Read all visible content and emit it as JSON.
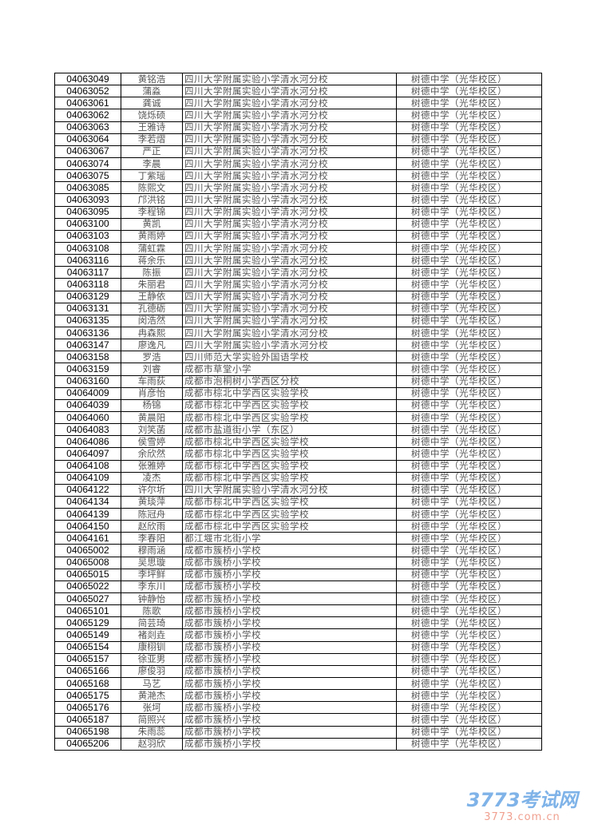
{
  "rows": [
    [
      "04063049",
      "黄铭浩",
      "四川大学附属实验小学清水河分校",
      "树德中学（光华校区）"
    ],
    [
      "04063052",
      "蒲淼",
      "四川大学附属实验小学清水河分校",
      "树德中学（光华校区）"
    ],
    [
      "04063061",
      "龚诚",
      "四川大学附属实验小学清水河分校",
      "树德中学（光华校区）"
    ],
    [
      "04063062",
      "饶烁硕",
      "四川大学附属实验小学清水河分校",
      "树德中学（光华校区）"
    ],
    [
      "04063063",
      "王雅诗",
      "四川大学附属实验小学清水河分校",
      "树德中学（光华校区）"
    ],
    [
      "04063064",
      "李若熠",
      "四川大学附属实验小学清水河分校",
      "树德中学（光华校区）"
    ],
    [
      "04063067",
      "严正",
      "四川大学附属实验小学清水河分校",
      "树德中学（光华校区）"
    ],
    [
      "04063074",
      "李晨",
      "四川大学附属实验小学清水河分校",
      "树德中学（光华校区）"
    ],
    [
      "04063075",
      "丁紫瑶",
      "四川大学附属实验小学清水河分校",
      "树德中学（光华校区）"
    ],
    [
      "04063085",
      "陈熙文",
      "四川大学附属实验小学清水河分校",
      "树德中学（光华校区）"
    ],
    [
      "04063093",
      "邝洪铭",
      "四川大学附属实验小学清水河分校",
      "树德中学（光华校区）"
    ],
    [
      "04063095",
      "李程锦",
      "四川大学附属实验小学清水河分校",
      "树德中学（光华校区）"
    ],
    [
      "04063100",
      "黄凯",
      "四川大学附属实验小学清水河分校",
      "树德中学（光华校区）"
    ],
    [
      "04063103",
      "黄雨婷",
      "四川大学附属实验小学清水河分校",
      "树德中学（光华校区）"
    ],
    [
      "04063108",
      "蒲虹霖",
      "四川大学附属实验小学清水河分校",
      "树德中学（光华校区）"
    ],
    [
      "04063116",
      "蒋余乐",
      "四川大学附属实验小学清水河分校",
      "树德中学（光华校区）"
    ],
    [
      "04063117",
      "陈振",
      "四川大学附属实验小学清水河分校",
      "树德中学（光华校区）"
    ],
    [
      "04063118",
      "朱丽君",
      "四川大学附属实验小学清水河分校",
      "树德中学（光华校区）"
    ],
    [
      "04063129",
      "王静依",
      "四川大学附属实验小学清水河分校",
      "树德中学（光华校区）"
    ],
    [
      "04063131",
      "孔德砺",
      "四川大学附属实验小学清水河分校",
      "树德中学（光华校区）"
    ],
    [
      "04063135",
      "闵浩然",
      "四川大学附属实验小学清水河分校",
      "树德中学（光华校区）"
    ],
    [
      "04063136",
      "冉森熙",
      "四川大学附属实验小学清水河分校",
      "树德中学（光华校区）"
    ],
    [
      "04063147",
      "廖逸凡",
      "四川大学附属实验小学清水河分校",
      "树德中学（光华校区）"
    ],
    [
      "04063158",
      "罗浩",
      "四川师范大学实验外国语学校",
      "树德中学（光华校区）"
    ],
    [
      "04063159",
      "刘睿",
      "成都市草堂小学",
      "树德中学（光华校区）"
    ],
    [
      "04063160",
      "车雨荻",
      "成都市泡桐树小学西区分校",
      "树德中学（光华校区）"
    ],
    [
      "04064009",
      "肖彦怡",
      "成都市棕北中学西区实验学校",
      "树德中学（光华校区）"
    ],
    [
      "04064039",
      "杨锦",
      "成都市棕北中学西区实验学校",
      "树德中学（光华校区）"
    ],
    [
      "04064060",
      "黄晨阳",
      "成都市棕北中学西区实验学校",
      "树德中学（光华校区）"
    ],
    [
      "04064083",
      "刘笑菡",
      "成都市盐道街小学（东区）",
      "树德中学（光华校区）"
    ],
    [
      "04064086",
      "侯雪婷",
      "成都市棕北中学西区实验学校",
      "树德中学（光华校区）"
    ],
    [
      "04064097",
      "余欣然",
      "成都市棕北中学西区实验学校",
      "树德中学（光华校区）"
    ],
    [
      "04064108",
      "张雅婷",
      "成都市棕北中学西区实验学校",
      "树德中学（光华校区）"
    ],
    [
      "04064109",
      "凌杰",
      "成都市棕北中学西区实验学校",
      "树德中学（光华校区）"
    ],
    [
      "04064122",
      "许尔圻",
      "四川大学附属实验小学清水河分校",
      "树德中学（光华校区）"
    ],
    [
      "04064134",
      "黄琰萍",
      "成都市棕北中学西区实验学校",
      "树德中学（光华校区）"
    ],
    [
      "04064139",
      "陈冠舟",
      "成都市棕北中学西区实验学校",
      "树德中学（光华校区）"
    ],
    [
      "04064150",
      "赵欣雨",
      "成都市棕北中学西区实验学校",
      "树德中学（光华校区）"
    ],
    [
      "04064161",
      "李春阳",
      "都江堰市北街小学",
      "树德中学（光华校区）"
    ],
    [
      "04065002",
      "穆雨涵",
      "成都市簇桥小学校",
      "树德中学（光华校区）"
    ],
    [
      "04065008",
      "吴思璇",
      "成都市簇桥小学校",
      "树德中学（光华校区）"
    ],
    [
      "04065015",
      "李坪鲜",
      "成都市簇桥小学校",
      "树德中学（光华校区）"
    ],
    [
      "04065022",
      "李东川",
      "成都市簇桥小学校",
      "树德中学（光华校区）"
    ],
    [
      "04065027",
      "钟静怡",
      "成都市簇桥小学校",
      "树德中学（光华校区）"
    ],
    [
      "04065101",
      "陈歌",
      "成都市簇桥小学校",
      "树德中学（光华校区）"
    ],
    [
      "04065129",
      "简芸琦",
      "成都市簇桥小学校",
      "树德中学（光华校区）"
    ],
    [
      "04065149",
      "褚剡垚",
      "成都市簇桥小学校",
      "树德中学（光华校区）"
    ],
    [
      "04065154",
      "康栩钏",
      "成都市簇桥小学校",
      "树德中学（光华校区）"
    ],
    [
      "04065157",
      "徐亚男",
      "成都市簇桥小学校",
      "树德中学（光华校区）"
    ],
    [
      "04065166",
      "廖俊羽",
      "成都市簇桥小学校",
      "树德中学（光华校区）"
    ],
    [
      "04065168",
      "马艺",
      "成都市簇桥小学校",
      "树德中学（光华校区）"
    ],
    [
      "04065175",
      "黄滟杰",
      "成都市簇桥小学校",
      "树德中学（光华校区）"
    ],
    [
      "04065176",
      "张坷",
      "成都市簇桥小学校",
      "树德中学（光华校区）"
    ],
    [
      "04065187",
      "简照兴",
      "成都市簇桥小学校",
      "树德中学（光华校区）"
    ],
    [
      "04065198",
      "朱雨蕊",
      "成都市簇桥小学校",
      "树德中学（光华校区）"
    ],
    [
      "04065206",
      "赵羽欣",
      "成都市簇桥小学校",
      "树德中学（光华校区）"
    ]
  ],
  "watermark": {
    "logo": "3773考试网",
    "url": "3773.com.cn"
  }
}
